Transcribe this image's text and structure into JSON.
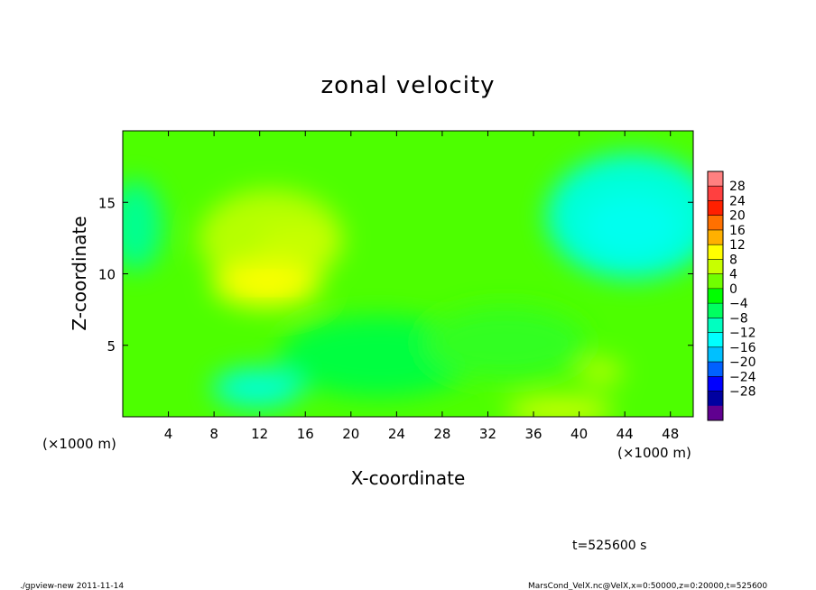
{
  "chart_data": {
    "type": "heatmap",
    "title": "zonal velocity",
    "xlabel": "X-coordinate",
    "ylabel": "Z-coordinate",
    "x_unit": "(×1000 m)",
    "xlim": [
      0,
      50
    ],
    "ylim": [
      0,
      20
    ],
    "x_ticks": [
      "4",
      "8",
      "12",
      "16",
      "20",
      "24",
      "28",
      "32",
      "36",
      "40",
      "44",
      "48"
    ],
    "y_ticks": [
      "5",
      "10",
      "15"
    ],
    "colorbar_labels": [
      "28",
      "24",
      "20",
      "16",
      "12",
      "8",
      "4",
      "0",
      "−4",
      "−8",
      "−12",
      "−16",
      "−20",
      "−24",
      "−28"
    ],
    "colorbar_colors": [
      "#ff8080",
      "#ff4040",
      "#ff2000",
      "#ff7000",
      "#ffb000",
      "#ffff00",
      "#c8ff00",
      "#70ff00",
      "#00ff00",
      "#00ff60",
      "#00ffc0",
      "#00ffff",
      "#00c0ff",
      "#0060ff",
      "#0000ff",
      "#0000a0",
      "#600090"
    ],
    "features": [
      {
        "x": 13,
        "z": 9.5,
        "value": 10
      },
      {
        "x": 14,
        "z": 12.5,
        "value": 6
      },
      {
        "x": 12,
        "z": 2.5,
        "value": -10
      },
      {
        "x": 46,
        "z": 14,
        "value": -10
      },
      {
        "x": 1,
        "z": 13,
        "value": -8
      },
      {
        "x": 38,
        "z": 1,
        "value": 8
      },
      {
        "x": 42,
        "z": 3,
        "value": 6
      }
    ],
    "time_label": "t=525600 s"
  },
  "footer": {
    "left": "./gpview-new 2011-11-14",
    "right": "MarsCond_VelX.nc@VelX,x=0:50000,z=0:20000,t=525600"
  }
}
